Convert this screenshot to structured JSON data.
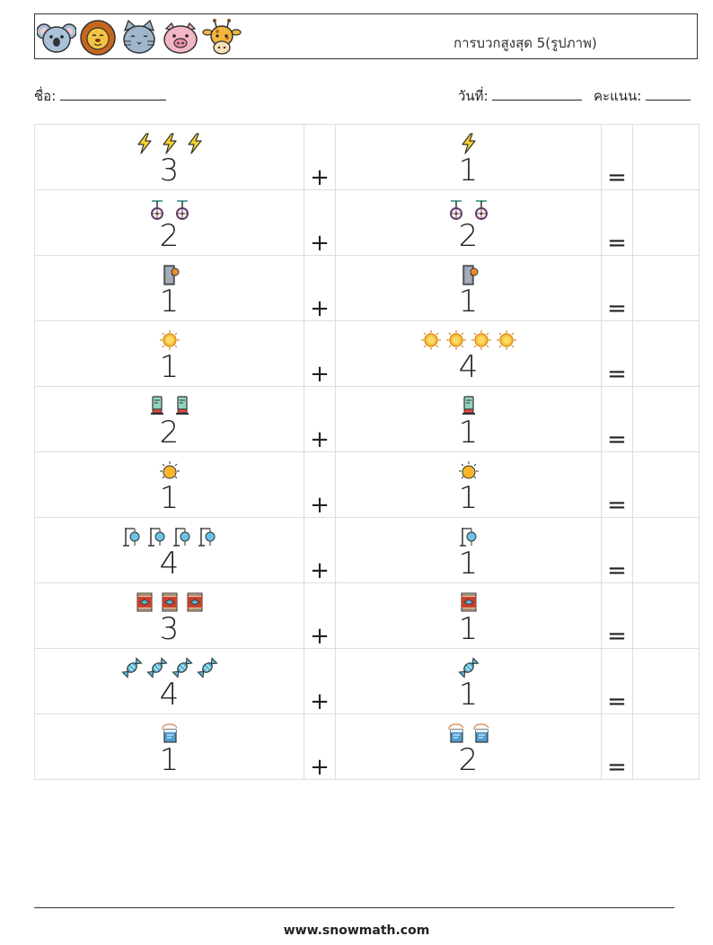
{
  "header": {
    "title": "การบวกสูงสุด 5(รูปภาพ)",
    "animals": [
      "koala-face-icon",
      "lion-face-icon",
      "cat-face-icon",
      "pig-face-icon",
      "giraffe-face-icon"
    ]
  },
  "info": {
    "name_label": "ชื่อ:",
    "date_label": "วันที่:",
    "score_label": "คะแนน:"
  },
  "operators": {
    "plus": "+",
    "equals": "="
  },
  "problems": [
    {
      "left": {
        "value": "3",
        "icon": "lightning-icon"
      },
      "right": {
        "value": "1",
        "icon": "lightning-icon"
      }
    },
    {
      "left": {
        "value": "2",
        "icon": "unicycle-icon"
      },
      "right": {
        "value": "2",
        "icon": "unicycle-icon"
      }
    },
    {
      "left": {
        "value": "1",
        "icon": "door-icon"
      },
      "right": {
        "value": "1",
        "icon": "door-icon"
      }
    },
    {
      "left": {
        "value": "1",
        "icon": "sun-icon"
      },
      "right": {
        "value": "4",
        "icon": "sun-icon"
      }
    },
    {
      "left": {
        "value": "2",
        "icon": "toothpaste-icon"
      },
      "right": {
        "value": "1",
        "icon": "toothpaste-icon"
      }
    },
    {
      "left": {
        "value": "1",
        "icon": "small-sun-icon"
      },
      "right": {
        "value": "1",
        "icon": "small-sun-icon"
      }
    },
    {
      "left": {
        "value": "4",
        "icon": "iv-drip-icon"
      },
      "right": {
        "value": "1",
        "icon": "iv-drip-icon"
      }
    },
    {
      "left": {
        "value": "3",
        "icon": "rug-icon"
      },
      "right": {
        "value": "1",
        "icon": "rug-icon"
      }
    },
    {
      "left": {
        "value": "4",
        "icon": "candy-icon"
      },
      "right": {
        "value": "1",
        "icon": "candy-icon"
      }
    },
    {
      "left": {
        "value": "1",
        "icon": "paint-bucket-icon"
      },
      "right": {
        "value": "2",
        "icon": "paint-bucket-icon"
      }
    }
  ],
  "footer": {
    "url": "www.snowmath.com"
  }
}
